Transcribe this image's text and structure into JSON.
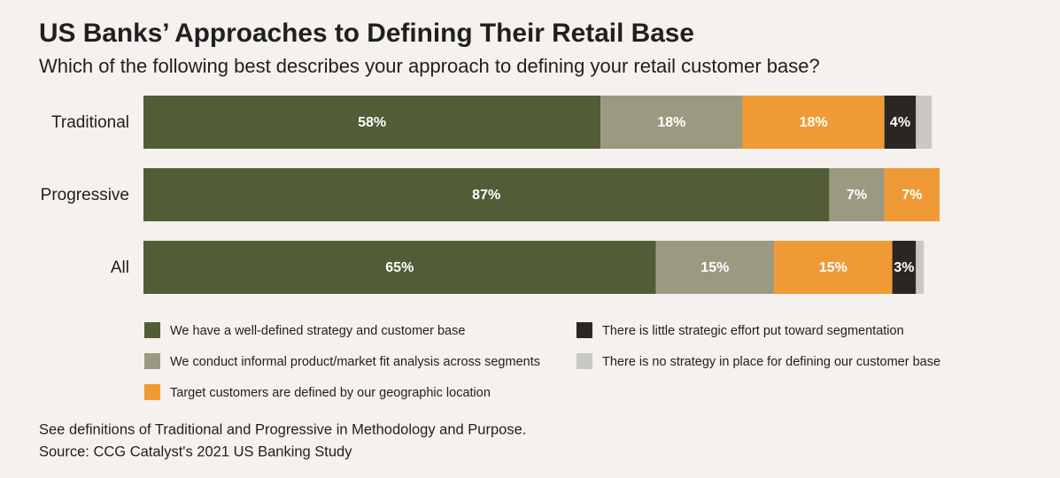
{
  "chart_data": {
    "type": "bar",
    "orientation": "horizontal",
    "stacked": true,
    "title": "US Banks’ Approaches to Defining Their Retail Base",
    "subtitle": "Which of the following best describes your approach to defining your retail customer base?",
    "categories": [
      "Traditional",
      "Progressive",
      "All"
    ],
    "series": [
      {
        "name": "We have a well-defined strategy and customer base",
        "color": "#525c37",
        "values": [
          58,
          87,
          65
        ],
        "value_labels": [
          "58%",
          "87%",
          "65%"
        ]
      },
      {
        "name": "We conduct informal product/market fit analysis across segments",
        "color": "#9b9a80",
        "values": [
          18,
          7,
          15
        ],
        "value_labels": [
          "18%",
          "7%",
          "15%"
        ]
      },
      {
        "name": "Target customers are defined by our geographic location",
        "color": "#ef9a35",
        "values": [
          18,
          7,
          15
        ],
        "value_labels": [
          "18%",
          "7%",
          "15%"
        ]
      },
      {
        "name": "There is little strategic effort put toward segmentation",
        "color": "#2b2523",
        "values": [
          4,
          0,
          3
        ],
        "value_labels": [
          "4%",
          null,
          "3%"
        ]
      },
      {
        "name": "There is no strategy in place for defining our customer base",
        "color": "#c9c8c4",
        "values": [
          2,
          0,
          1
        ],
        "value_labels": [
          null,
          null,
          null
        ]
      }
    ],
    "xlim": [
      0,
      101
    ],
    "legend": "bottom",
    "footnotes": [
      "See definitions of Traditional and Progressive in Methodology and Purpose.",
      "Source: CCG Catalyst's 2021 US Banking Study"
    ]
  }
}
